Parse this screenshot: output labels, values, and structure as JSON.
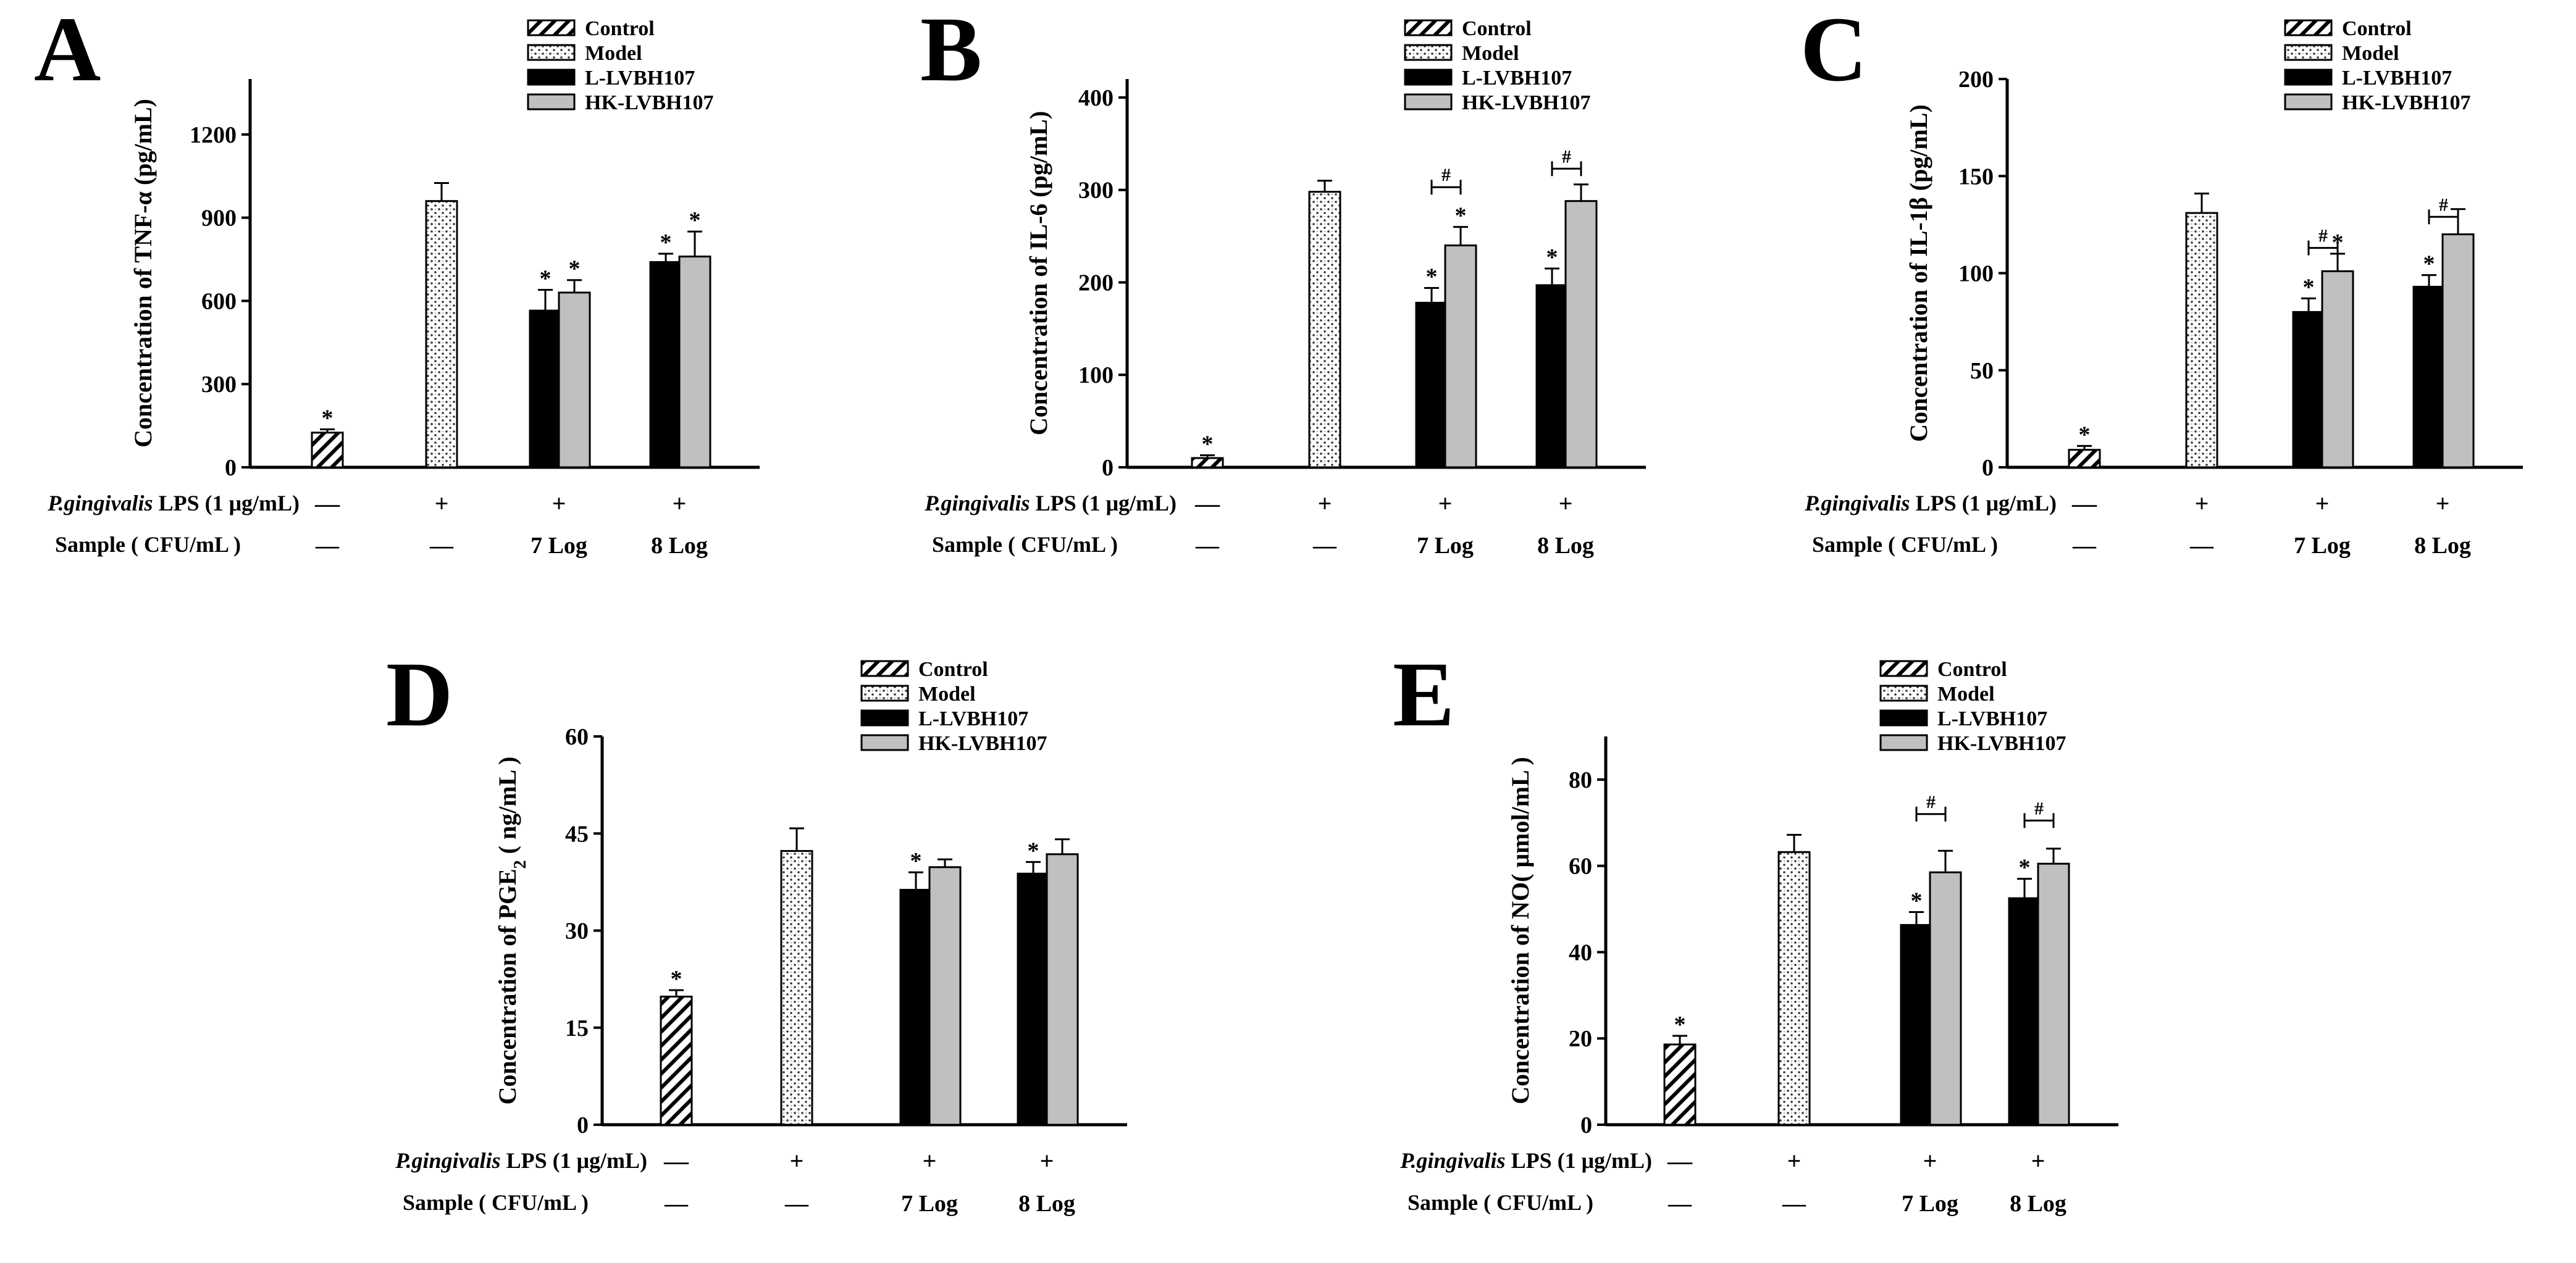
{
  "chart_data": [
    {
      "type": "bar",
      "panel": "A",
      "ylabel": "Concentration of  TNF-α  (pg/mL)",
      "ylim": [
        0,
        1400
      ],
      "yticks": [
        0,
        300,
        600,
        900,
        1200
      ],
      "categories": [
        "Control",
        "Model",
        "7 Log",
        "8 Log"
      ],
      "series": [
        {
          "name": "Control",
          "values": [
            125,
            null,
            null,
            null
          ],
          "errors": [
            12,
            null,
            null,
            null
          ]
        },
        {
          "name": "Model",
          "values": [
            null,
            960,
            null,
            null
          ],
          "errors": [
            null,
            65,
            null,
            null
          ]
        },
        {
          "name": "L-LVBH107",
          "values": [
            null,
            null,
            565,
            740
          ],
          "errors": [
            null,
            null,
            75,
            30
          ]
        },
        {
          "name": "HK-LVBH107",
          "values": [
            null,
            null,
            630,
            760
          ],
          "errors": [
            null,
            null,
            45,
            90
          ]
        }
      ],
      "significance": [
        {
          "marker": "*",
          "x": 0,
          "series": "Control"
        },
        {
          "marker": "*",
          "x": 2,
          "series": "L-LVBH107"
        },
        {
          "marker": "*",
          "x": 2,
          "series": "HK-LVBH107"
        },
        {
          "marker": "*",
          "x": 3,
          "series": "L-LVBH107"
        },
        {
          "marker": "*",
          "x": 3,
          "series": "HK-LVBH107"
        }
      ],
      "brackets": []
    },
    {
      "type": "bar",
      "panel": "B",
      "ylabel": "Concentration of  IL-6 (pg/mL)",
      "ylim": [
        0,
        420
      ],
      "yticks": [
        0,
        100,
        200,
        300,
        400
      ],
      "categories": [
        "Control",
        "Model",
        "7 Log",
        "8 Log"
      ],
      "series": [
        {
          "name": "Control",
          "values": [
            10,
            null,
            null,
            null
          ],
          "errors": [
            3,
            null,
            null,
            null
          ]
        },
        {
          "name": "Model",
          "values": [
            null,
            298,
            null,
            null
          ],
          "errors": [
            null,
            12,
            null,
            null
          ]
        },
        {
          "name": "L-LVBH107",
          "values": [
            null,
            null,
            178,
            197
          ],
          "errors": [
            null,
            null,
            16,
            18
          ]
        },
        {
          "name": "HK-LVBH107",
          "values": [
            null,
            null,
            240,
            288
          ],
          "errors": [
            null,
            null,
            20,
            18
          ]
        }
      ],
      "significance": [
        {
          "marker": "*",
          "x": 0,
          "series": "Control"
        },
        {
          "marker": "*",
          "x": 2,
          "series": "L-LVBH107"
        },
        {
          "marker": "*",
          "x": 2,
          "series": "HK-LVBH107"
        },
        {
          "marker": "*",
          "x": 3,
          "series": "L-LVBH107"
        }
      ],
      "brackets": [
        {
          "marker": "#",
          "x": 2,
          "level": 303
        },
        {
          "marker": "#",
          "x": 3,
          "level": 323
        }
      ]
    },
    {
      "type": "bar",
      "panel": "C",
      "ylabel": "Concentration of  IL-1β  (pg/mL)",
      "ylim": [
        0,
        200
      ],
      "yticks": [
        0,
        50,
        100,
        150,
        200
      ],
      "categories": [
        "Control",
        "Model",
        "7 Log",
        "8 Log"
      ],
      "series": [
        {
          "name": "Control",
          "values": [
            9,
            null,
            null,
            null
          ],
          "errors": [
            2,
            null,
            null,
            null
          ]
        },
        {
          "name": "Model",
          "values": [
            null,
            131,
            null,
            null
          ],
          "errors": [
            null,
            10,
            null,
            null
          ]
        },
        {
          "name": "L-LVBH107",
          "values": [
            null,
            null,
            80,
            93
          ],
          "errors": [
            null,
            null,
            7,
            6
          ]
        },
        {
          "name": "HK-LVBH107",
          "values": [
            null,
            null,
            101,
            120
          ],
          "errors": [
            null,
            null,
            9,
            13
          ]
        }
      ],
      "significance": [
        {
          "marker": "*",
          "x": 0,
          "series": "Control"
        },
        {
          "marker": "*",
          "x": 2,
          "series": "L-LVBH107"
        },
        {
          "marker": "*",
          "x": 2,
          "series": "HK-LVBH107"
        },
        {
          "marker": "*",
          "x": 3,
          "series": "L-LVBH107"
        }
      ],
      "brackets": [
        {
          "marker": "#",
          "x": 2,
          "level": 113
        },
        {
          "marker": "#",
          "x": 3,
          "level": 129
        }
      ]
    },
    {
      "type": "bar",
      "panel": "D",
      "ylabel": "Concentration of  PGE",
      "ylabel_sub": "2",
      "ylabel_unit": " ( ng/mL )",
      "ylim": [
        0,
        60
      ],
      "yticks": [
        0,
        15,
        30,
        45,
        60
      ],
      "categories": [
        "Control",
        "Model",
        "7 Log",
        "8 Log"
      ],
      "series": [
        {
          "name": "Control",
          "values": [
            19.8,
            null,
            null,
            null
          ],
          "errors": [
            1.0,
            null,
            null,
            null
          ]
        },
        {
          "name": "Model",
          "values": [
            null,
            42.3,
            null,
            null
          ],
          "errors": [
            null,
            3.5,
            null,
            null
          ]
        },
        {
          "name": "L-LVBH107",
          "values": [
            null,
            null,
            36.3,
            38.8
          ],
          "errors": [
            null,
            null,
            2.7,
            1.8
          ]
        },
        {
          "name": "HK-LVBH107",
          "values": [
            null,
            null,
            39.8,
            41.8
          ],
          "errors": [
            null,
            null,
            1.2,
            2.3
          ]
        }
      ],
      "significance": [
        {
          "marker": "*",
          "x": 0,
          "series": "Control"
        },
        {
          "marker": "*",
          "x": 2,
          "series": "L-LVBH107"
        },
        {
          "marker": "*",
          "x": 3,
          "series": "L-LVBH107"
        }
      ],
      "brackets": []
    },
    {
      "type": "bar",
      "panel": "E",
      "ylabel": "Concentration of NO( μmol/mL  )",
      "ylim": [
        0,
        90
      ],
      "yticks": [
        0,
        20,
        40,
        60,
        80
      ],
      "categories": [
        "Control",
        "Model",
        "7 Log",
        "8 Log"
      ],
      "series": [
        {
          "name": "Control",
          "values": [
            18.6,
            null,
            null,
            null
          ],
          "errors": [
            2.0,
            null,
            null,
            null
          ]
        },
        {
          "name": "Model",
          "values": [
            null,
            63.2,
            null,
            null
          ],
          "errors": [
            null,
            4.0,
            null,
            null
          ]
        },
        {
          "name": "L-LVBH107",
          "values": [
            null,
            null,
            46.3,
            52.5
          ],
          "errors": [
            null,
            null,
            3.0,
            4.5
          ]
        },
        {
          "name": "HK-LVBH107",
          "values": [
            null,
            null,
            58.5,
            60.5
          ],
          "errors": [
            null,
            null,
            5.0,
            3.5
          ]
        }
      ],
      "significance": [
        {
          "marker": "*",
          "x": 0,
          "series": "Control"
        },
        {
          "marker": "*",
          "x": 2,
          "series": "L-LVBH107"
        },
        {
          "marker": "*",
          "x": 3,
          "series": "L-LVBH107"
        }
      ],
      "brackets": [
        {
          "marker": "#",
          "x": 2,
          "level": 72
        },
        {
          "marker": "#",
          "x": 3,
          "level": 70.5
        }
      ]
    }
  ],
  "legend": [
    "Control",
    "Model",
    "L-LVBH107",
    "HK-LVBH107"
  ],
  "conditions": {
    "lps_label_italic": "P.gingivalis",
    "lps_label_rest": " LPS (1 μg/mL)",
    "lps_values": [
      "—",
      "+",
      "+",
      "+"
    ],
    "sample_label": "Sample  ( CFU/mL )",
    "sample_values": [
      "—",
      "—",
      "7 Log",
      "8 Log"
    ]
  }
}
